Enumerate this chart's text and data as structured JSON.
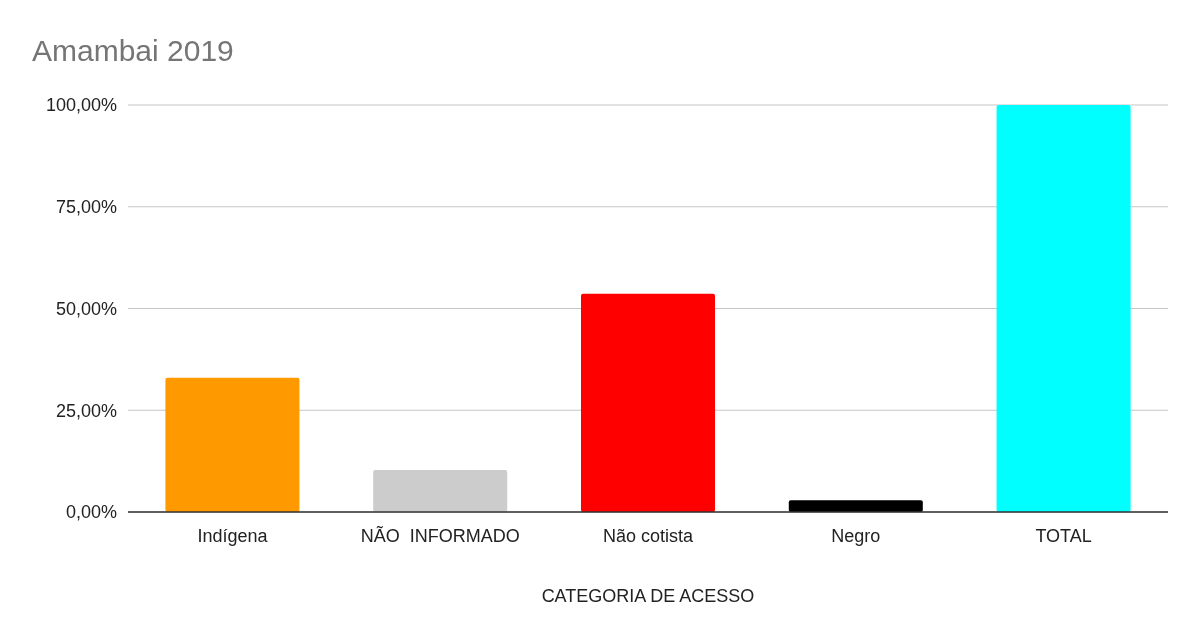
{
  "chart_data": {
    "type": "bar",
    "title": "Amambai 2019",
    "xlabel": "CATEGORIA DE ACESSO",
    "categories": [
      "Indígena",
      "NÃO  INFORMADO",
      "Não cotista",
      "Negro",
      "TOTAL"
    ],
    "values": [
      33,
      10.3,
      53.6,
      2.9,
      100
    ],
    "colors": [
      "#ff9900",
      "#cccccc",
      "#ff0000",
      "#000000",
      "#00ffff"
    ],
    "ylim": [
      0,
      100
    ],
    "yticks": [
      {
        "value": 0,
        "label": "0,00%"
      },
      {
        "value": 25,
        "label": "25,00%"
      },
      {
        "value": 50,
        "label": "50,00%"
      },
      {
        "value": 75,
        "label": "75,00%"
      },
      {
        "value": 100,
        "label": "100,00%"
      }
    ],
    "grid": "y"
  }
}
